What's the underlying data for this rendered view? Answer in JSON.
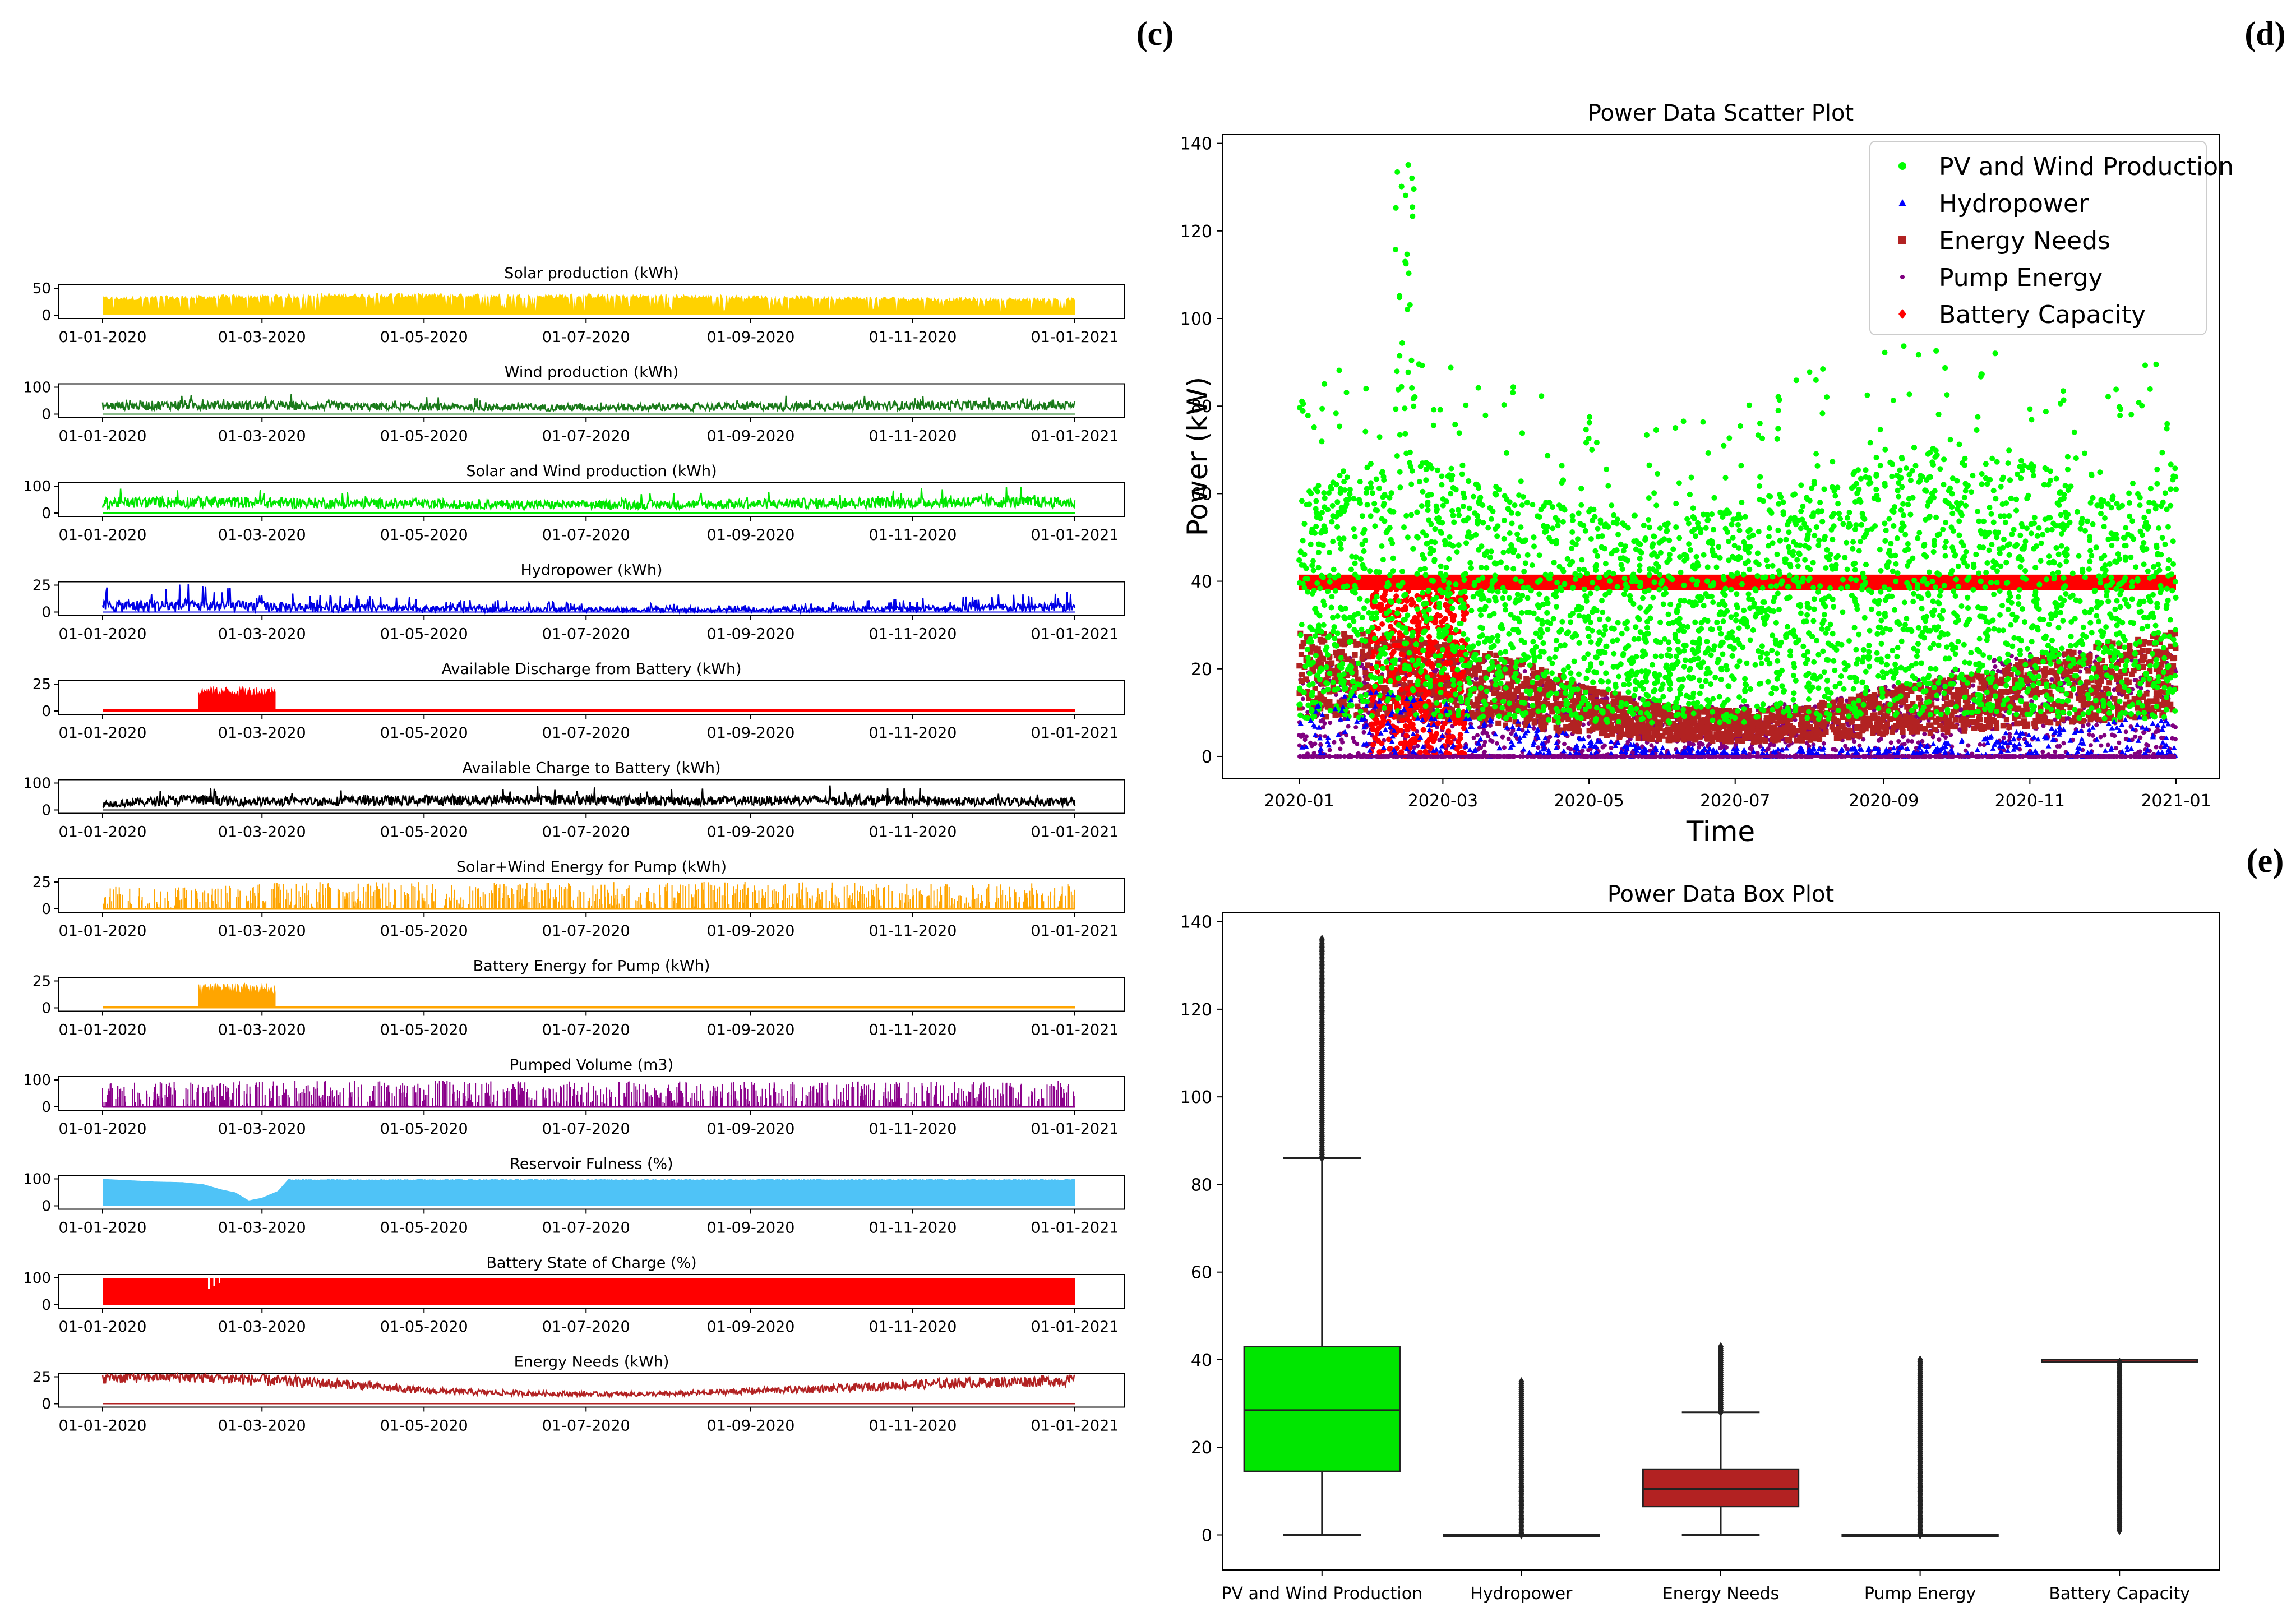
{
  "figure": {
    "panel_labels": [
      "(c)",
      "(d)",
      "(e)"
    ]
  },
  "chart_data": [
    {
      "type": "area",
      "id": "solar",
      "title": "Solar production (kWh)",
      "color": "#FFD200",
      "ylim": [
        0,
        50
      ],
      "yticks": [
        0,
        50
      ],
      "xlim": [
        "01-01-2020",
        "01-01-2021"
      ],
      "xticks": [
        "01-01-2020",
        "01-03-2020",
        "01-05-2020",
        "01-07-2020",
        "01-09-2020",
        "01-11-2020",
        "01-01-2021"
      ],
      "monthly_envelope": [
        34,
        36,
        38,
        40,
        40,
        39,
        39,
        38,
        37,
        35,
        33,
        32,
        32
      ]
    },
    {
      "type": "line",
      "id": "wind",
      "title": "Wind production (kWh)",
      "color": "#1A7A1A",
      "ylim": [
        0,
        100
      ],
      "yticks": [
        0,
        100
      ],
      "xlim": [
        "01-01-2020",
        "01-01-2021"
      ],
      "xticks": [
        "01-01-2020",
        "01-03-2020",
        "01-05-2020",
        "01-07-2020",
        "01-09-2020",
        "01-11-2020",
        "01-01-2021"
      ],
      "monthly_envelope": [
        40,
        45,
        42,
        38,
        35,
        33,
        32,
        34,
        38,
        40,
        42,
        44,
        42
      ]
    },
    {
      "type": "line",
      "id": "solar_wind",
      "title": "Solar and Wind production (kWh)",
      "color": "#00E600",
      "ylim": [
        0,
        100
      ],
      "yticks": [
        0,
        100
      ],
      "xlim": [
        "01-01-2020",
        "01-01-2021"
      ],
      "xticks": [
        "01-01-2020",
        "01-03-2020",
        "01-05-2020",
        "01-07-2020",
        "01-09-2020",
        "01-11-2020",
        "01-01-2021"
      ],
      "monthly_envelope": [
        50,
        55,
        52,
        48,
        45,
        42,
        40,
        42,
        45,
        50,
        52,
        55,
        52
      ]
    },
    {
      "type": "line",
      "id": "hydro",
      "title": "Hydropower (kWh)",
      "color": "#0000E6",
      "ylim": [
        0,
        25
      ],
      "yticks": [
        0,
        25
      ],
      "xlim": [
        "01-01-2020",
        "01-01-2021"
      ],
      "xticks": [
        "01-01-2020",
        "01-03-2020",
        "01-05-2020",
        "01-07-2020",
        "01-09-2020",
        "01-11-2020",
        "01-01-2021"
      ],
      "monthly_envelope": [
        22,
        24,
        20,
        15,
        12,
        10,
        8,
        7,
        6,
        9,
        12,
        15,
        18
      ]
    },
    {
      "type": "area",
      "id": "discharge",
      "title": "Available Discharge from Battery (kWh)",
      "color": "#FF0000",
      "ylim": [
        0,
        25
      ],
      "yticks": [
        0,
        25
      ],
      "xlim": [
        "01-01-2020",
        "01-01-2021"
      ],
      "xticks": [
        "01-01-2020",
        "01-03-2020",
        "01-05-2020",
        "01-07-2020",
        "01-09-2020",
        "01-11-2020",
        "01-01-2021"
      ],
      "active_range_days": [
        36,
        65
      ],
      "active_level": 23
    },
    {
      "type": "line",
      "id": "charge",
      "title": "Available Charge to Battery (kWh)",
      "color": "#000000",
      "ylim": [
        0,
        100
      ],
      "yticks": [
        0,
        100
      ],
      "xlim": [
        "01-01-2020",
        "01-01-2021"
      ],
      "xticks": [
        "01-01-2020",
        "01-03-2020",
        "01-05-2020",
        "01-07-2020",
        "01-09-2020",
        "01-11-2020",
        "01-01-2021"
      ],
      "monthly_envelope": [
        30,
        50,
        40,
        45,
        48,
        50,
        50,
        45,
        45,
        50,
        45,
        40,
        40
      ]
    },
    {
      "type": "bar",
      "id": "sw_pump",
      "title": "Solar+Wind Energy for Pump (kWh)",
      "color": "#FFA500",
      "ylim": [
        0,
        25
      ],
      "yticks": [
        0,
        25
      ],
      "xlim": [
        "01-01-2020",
        "01-01-2021"
      ],
      "xticks": [
        "01-01-2020",
        "01-03-2020",
        "01-05-2020",
        "01-07-2020",
        "01-09-2020",
        "01-11-2020",
        "01-01-2021"
      ],
      "monthly_envelope": [
        22,
        20,
        25,
        25,
        25,
        24,
        25,
        25,
        25,
        25,
        24,
        24,
        25
      ]
    },
    {
      "type": "area",
      "id": "bat_pump",
      "title": "Battery Energy for Pump (kWh)",
      "color": "#FFA500",
      "ylim": [
        0,
        25
      ],
      "yticks": [
        0,
        25
      ],
      "xlim": [
        "01-01-2020",
        "01-01-2021"
      ],
      "xticks": [
        "01-01-2020",
        "01-03-2020",
        "01-05-2020",
        "01-07-2020",
        "01-09-2020",
        "01-11-2020",
        "01-01-2021"
      ],
      "active_range_days": [
        36,
        65
      ],
      "active_level": 23
    },
    {
      "type": "bar",
      "id": "pumped",
      "title": "Pumped Volume (m3)",
      "color": "#8B008B",
      "ylim": [
        0,
        100
      ],
      "yticks": [
        0,
        100
      ],
      "xlim": [
        "01-01-2020",
        "01-01-2021"
      ],
      "xticks": [
        "01-01-2020",
        "01-03-2020",
        "01-05-2020",
        "01-07-2020",
        "01-09-2020",
        "01-11-2020",
        "01-01-2021"
      ],
      "monthly_envelope": [
        90,
        95,
        100,
        100,
        100,
        95,
        95,
        95,
        95,
        95,
        95,
        95,
        100
      ]
    },
    {
      "type": "area",
      "id": "reservoir",
      "title": "Reservoir Fulness (%)",
      "color": "#4FC3F7",
      "ylim": [
        0,
        100
      ],
      "yticks": [
        0,
        100
      ],
      "xlim": [
        "01-01-2020",
        "01-01-2021"
      ],
      "xticks": [
        "01-01-2020",
        "01-03-2020",
        "01-05-2020",
        "01-07-2020",
        "01-09-2020",
        "01-11-2020",
        "01-01-2021"
      ],
      "profile_days": [
        0,
        10,
        20,
        30,
        38,
        45,
        50,
        55,
        60,
        66,
        70,
        80,
        366
      ],
      "profile_values": [
        100,
        95,
        90,
        88,
        80,
        60,
        50,
        20,
        30,
        55,
        100,
        100,
        100
      ]
    },
    {
      "type": "area",
      "id": "soc",
      "title": "Battery State of Charge (%)",
      "color": "#FF0000",
      "ylim": [
        0,
        100
      ],
      "yticks": [
        0,
        100
      ],
      "xlim": [
        "01-01-2020",
        "01-01-2021"
      ],
      "xticks": [
        "01-01-2020",
        "01-03-2020",
        "01-05-2020",
        "01-07-2020",
        "01-09-2020",
        "01-11-2020",
        "01-01-2021"
      ],
      "level": 100,
      "dips_days": [
        40,
        42,
        44
      ],
      "dips_values": [
        60,
        70,
        80
      ]
    },
    {
      "type": "line",
      "id": "needs",
      "title": "Energy Needs (kWh)",
      "color": "#B22222",
      "ylim": [
        0,
        25
      ],
      "yticks": [
        0,
        25
      ],
      "xlim": [
        "01-01-2020",
        "01-01-2021"
      ],
      "xticks": [
        "01-01-2020",
        "01-03-2020",
        "01-05-2020",
        "01-07-2020",
        "01-09-2020",
        "01-11-2020",
        "01-01-2021"
      ],
      "monthly_mean": [
        25,
        26,
        22,
        18,
        12,
        10,
        9,
        9,
        12,
        14,
        18,
        20,
        22
      ]
    },
    {
      "type": "scatter",
      "id": "scatter",
      "title": "Power Data Scatter Plot",
      "xlabel": "Time",
      "ylabel": "Power (kW)",
      "ylim": [
        -5,
        142
      ],
      "yticks": [
        0,
        20,
        40,
        60,
        80,
        100,
        120,
        140
      ],
      "xtick_labels": [
        "2020-01",
        "2020-03",
        "2020-05",
        "2020-07",
        "2020-09",
        "2020-11",
        "2021-01"
      ],
      "legend_position": "top-right",
      "series": [
        {
          "name": "PV and Wind Production",
          "color": "#00FF00",
          "marker": "circle",
          "monthly_mean": [
            40,
            45,
            45,
            40,
            38,
            36,
            38,
            42,
            45,
            48,
            45,
            40,
            45
          ],
          "peak": 136
        },
        {
          "name": "Hydropower",
          "color": "#0000FF",
          "marker": "triangle",
          "monthly_mean": [
            5,
            8,
            6,
            4,
            2,
            1,
            1,
            1,
            1,
            2,
            3,
            4,
            5
          ]
        },
        {
          "name": "Energy Needs",
          "color": "#B22222",
          "marker": "square",
          "monthly_mean": [
            22,
            22,
            20,
            17,
            12,
            9,
            8,
            9,
            12,
            14,
            17,
            20,
            22
          ]
        },
        {
          "name": "Pump Energy",
          "color": "#800080",
          "marker": "dot",
          "monthly_mean": [
            10,
            12,
            12,
            10,
            8,
            6,
            6,
            6,
            8,
            10,
            12,
            12,
            12
          ]
        },
        {
          "name": "Battery Capacity",
          "color": "#FF0000",
          "marker": "diamond",
          "level": 40
        }
      ]
    },
    {
      "type": "box",
      "id": "box",
      "title": "Power Data Box Plot",
      "ylim": [
        -8,
        142
      ],
      "yticks": [
        0,
        20,
        40,
        60,
        80,
        100,
        120,
        140
      ],
      "categories": [
        "PV and Wind Production",
        "Hydropower",
        "Energy Needs",
        "Pump Energy",
        "Battery Capacity"
      ],
      "boxes": [
        {
          "name": "PV and Wind Production",
          "color": "#00E600",
          "whisker_low": 0,
          "q1": 14.5,
          "median": 28.5,
          "q3": 43,
          "whisker_high": 86,
          "outlier_max": 136
        },
        {
          "name": "Hydropower",
          "color": "#1f77b4",
          "whisker_low": 0,
          "q1": 0,
          "median": 0,
          "q3": 0,
          "whisker_high": 0,
          "outlier_max": 35
        },
        {
          "name": "Energy Needs",
          "color": "#B22222",
          "whisker_low": 0,
          "q1": 6.5,
          "median": 10.5,
          "q3": 15,
          "whisker_high": 28,
          "outlier_max": 43
        },
        {
          "name": "Pump Energy",
          "color": "#ff7f0e",
          "whisker_low": 0,
          "q1": 0,
          "median": 0,
          "q3": 0,
          "whisker_high": 0,
          "outlier_max": 40
        },
        {
          "name": "Battery Capacity",
          "color": "#d62728",
          "whisker_low": 39.5,
          "q1": 39.5,
          "median": 40,
          "q3": 40,
          "whisker_high": 40,
          "outlier_min": 1
        }
      ]
    }
  ]
}
